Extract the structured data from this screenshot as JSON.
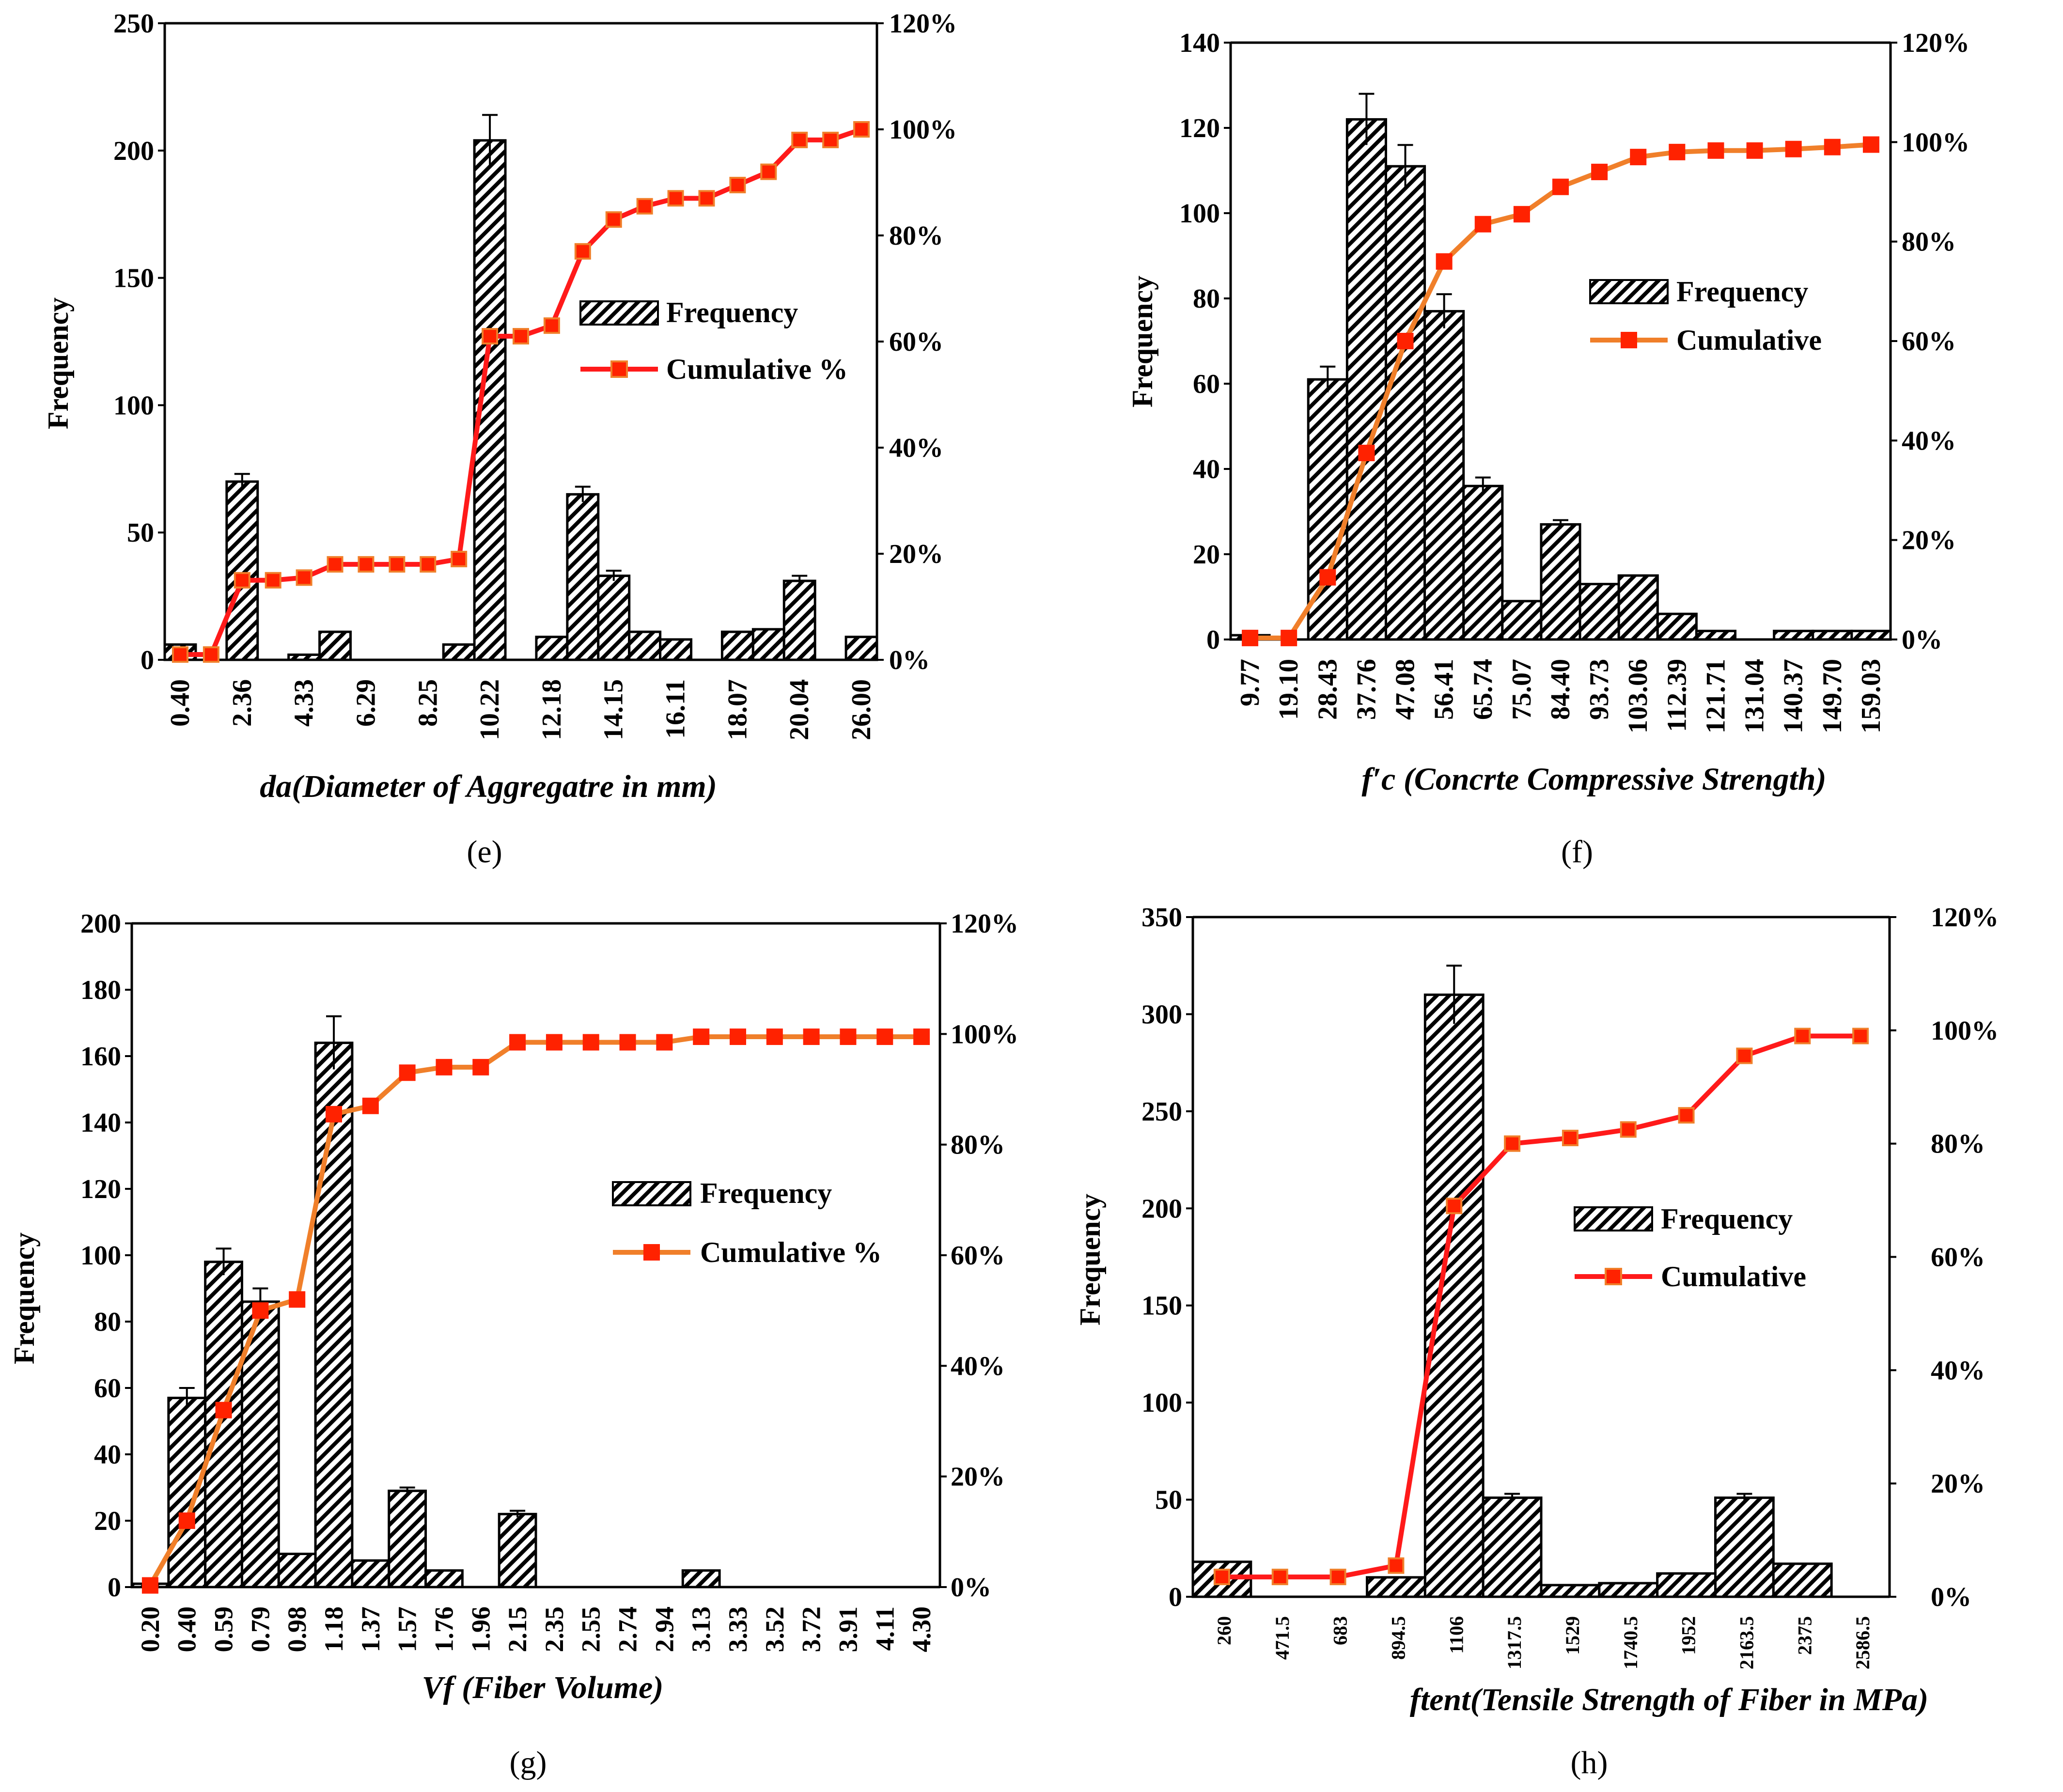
{
  "colors": {
    "bar_fill": "#ffffff",
    "bar_stroke": "#000000",
    "red": "#ff1a1a",
    "orange": "#f07f2a",
    "marker": "#ff2200"
  },
  "chart_data": [
    {
      "type": "bar",
      "panel_label": "(e)",
      "categories": [
        "0.40",
        "",
        "2.36",
        "",
        "4.33",
        "",
        "6.29",
        "",
        "8.25",
        "",
        "10.22",
        "",
        "12.18",
        "",
        "14.15",
        "",
        "16.11",
        "",
        "18.07",
        "",
        "20.04",
        "",
        "26.00"
      ],
      "title": "",
      "xlabel": "da(Diameter of Aggregatre in mm)",
      "ylabel": "Frequency",
      "ylim": [
        0,
        250
      ],
      "y_ticks": [
        "0",
        "50",
        "100",
        "150",
        "200",
        "250"
      ],
      "y2lim": [
        0,
        120
      ],
      "y2_ticks": [
        "0%",
        "20%",
        "40%",
        "60%",
        "80%",
        "100%",
        "120%"
      ],
      "series": [
        {
          "name": "Frequency",
          "kind": "bar",
          "values": [
            6,
            0,
            70,
            0,
            2,
            11,
            0,
            0,
            0,
            6,
            204,
            0,
            9,
            65,
            33,
            11,
            8,
            0,
            11,
            12,
            31,
            0,
            9
          ],
          "errors": [
            0,
            0,
            3,
            0,
            0,
            0,
            0,
            0,
            0,
            0,
            10,
            0,
            0,
            3,
            2,
            0,
            0,
            0,
            0,
            0,
            2,
            0,
            0
          ]
        },
        {
          "name": "Cumulative %",
          "kind": "line",
          "color": "red",
          "values": [
            1,
            1,
            15,
            15,
            15.5,
            18,
            18,
            18,
            18,
            19,
            61,
            61,
            63,
            77,
            83,
            85.5,
            87,
            87,
            89.5,
            92,
            98,
            98,
            100
          ]
        }
      ],
      "legend": [
        "Frequency",
        "Cumulative %"
      ]
    },
    {
      "type": "bar",
      "panel_label": "(f)",
      "categories": [
        "9.77",
        "19.10",
        "28.43",
        "37.76",
        "47.08",
        "56.41",
        "65.74",
        "75.07",
        "84.40",
        "93.73",
        "103.06",
        "112.39",
        "121.71",
        "131.04",
        "140.37",
        "149.70",
        "159.03"
      ],
      "title": "",
      "xlabel": "f′c (Concrte Compressive Strength)",
      "ylabel": "Frequency",
      "ylim": [
        0,
        140
      ],
      "y_ticks": [
        "0",
        "20",
        "40",
        "60",
        "80",
        "100",
        "120",
        "140"
      ],
      "y2lim": [
        0,
        120
      ],
      "y2_ticks": [
        "0%",
        "20%",
        "40%",
        "60%",
        "80%",
        "100%",
        "120%"
      ],
      "series": [
        {
          "name": "Frequency",
          "kind": "bar",
          "values": [
            1,
            0,
            61,
            122,
            111,
            77,
            36,
            9,
            27,
            13,
            15,
            6,
            2,
            0,
            2,
            2,
            2
          ],
          "errors": [
            0,
            0,
            3,
            6,
            5,
            4,
            2,
            0,
            1,
            0,
            0,
            0,
            0,
            0,
            0,
            0,
            0
          ]
        },
        {
          "name": "Cumulative",
          "kind": "line",
          "color": "orange",
          "values": [
            0.3,
            0.3,
            12.5,
            37.5,
            60,
            76,
            83.5,
            85.5,
            91,
            94,
            97,
            98,
            98.3,
            98.3,
            98.6,
            99,
            99.5
          ]
        }
      ],
      "legend": [
        "Frequency",
        "Cumulative"
      ]
    },
    {
      "type": "bar",
      "panel_label": "(g)",
      "categories": [
        "0.20",
        "0.40",
        "0.59",
        "0.79",
        "0.98",
        "1.18",
        "1.37",
        "1.57",
        "1.76",
        "1.96",
        "2.15",
        "2.35",
        "2.55",
        "2.74",
        "2.94",
        "3.13",
        "3.33",
        "3.52",
        "3.72",
        "3.91",
        "4.11",
        "4.30"
      ],
      "title": "",
      "xlabel": "Vf (Fiber Volume)",
      "ylabel": "Frequency",
      "ylim": [
        0,
        200
      ],
      "y_ticks": [
        "0",
        "20",
        "40",
        "60",
        "80",
        "100",
        "120",
        "140",
        "160",
        "180",
        "200"
      ],
      "y2lim": [
        0,
        120
      ],
      "y2_ticks": [
        "0%",
        "20%",
        "40%",
        "60%",
        "80%",
        "100%",
        "120%"
      ],
      "series": [
        {
          "name": "Frequency",
          "kind": "bar",
          "values": [
            1,
            57,
            98,
            86,
            10,
            164,
            8,
            29,
            5,
            0,
            22,
            0,
            0,
            0,
            0,
            5,
            0,
            0,
            0,
            0,
            0,
            0
          ],
          "errors": [
            0,
            3,
            4,
            4,
            0,
            8,
            0,
            1,
            0,
            0,
            1,
            0,
            0,
            0,
            0,
            0,
            0,
            0,
            0,
            0,
            0,
            0
          ]
        },
        {
          "name": "Cumulative %",
          "kind": "line",
          "color": "orange",
          "values": [
            0.3,
            12,
            32,
            50,
            52,
            85.5,
            87,
            93,
            94,
            94,
            98.5,
            98.5,
            98.5,
            98.5,
            98.5,
            99.5,
            99.5,
            99.5,
            99.5,
            99.5,
            99.5,
            99.5
          ]
        }
      ],
      "legend": [
        "Frequency",
        "Cumulative %"
      ]
    },
    {
      "type": "bar",
      "panel_label": "(h)",
      "categories": [
        "260",
        "471.5",
        "683",
        "894.5",
        "1106",
        "1317.5",
        "1529",
        "1740.5",
        "1952",
        "2163.5",
        "2375",
        "2586.5"
      ],
      "title": "",
      "xlabel": "ftent(Tensile Strength of Fiber in MPa)",
      "ylabel": "Frequency",
      "ylim": [
        0,
        350
      ],
      "y_ticks": [
        "0",
        "50",
        "100",
        "150",
        "200",
        "250",
        "300",
        "350"
      ],
      "y2lim": [
        0,
        120
      ],
      "y2_ticks": [
        "0%",
        "20%",
        "40%",
        "60%",
        "80%",
        "100%",
        "120%"
      ],
      "series": [
        {
          "name": "Frequency",
          "kind": "bar",
          "values": [
            18,
            0,
            0,
            10,
            310,
            51,
            6,
            7,
            12,
            51,
            17,
            0
          ],
          "errors": [
            0,
            0,
            0,
            0,
            15,
            2,
            0,
            0,
            0,
            2,
            0,
            0
          ]
        },
        {
          "name": "Cumulative",
          "kind": "line",
          "color": "red",
          "values": [
            3.5,
            3.5,
            3.5,
            5.5,
            69,
            80,
            81,
            82.5,
            85,
            95.5,
            99,
            99
          ]
        }
      ],
      "legend": [
        "Frequency",
        "Cumulative"
      ]
    }
  ]
}
